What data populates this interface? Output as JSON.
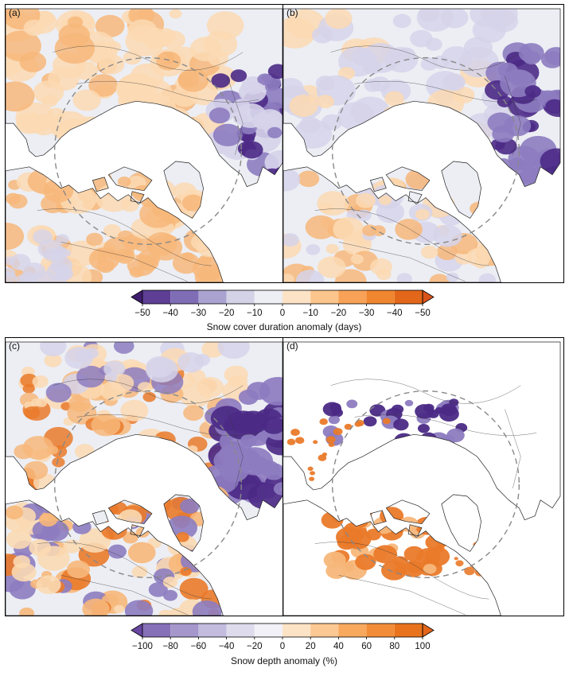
{
  "chart_data": [
    {
      "type": "heatmap",
      "panel_label": "(a)",
      "colorbar": "top",
      "pattern": "diverging map: orange (decrease) across Eurasia margins and western/central North America, purple (increase) over East Asia"
    },
    {
      "type": "heatmap",
      "panel_label": "(b)",
      "colorbar": "top",
      "pattern": "mostly light purple across Eurasia, strong purple over East Asia, orange patches over North America"
    },
    {
      "type": "heatmap",
      "panel_label": "(c)",
      "colorbar": "bottom",
      "pattern": "orange over Siberia and Canada, strong purple over East Asia and Scandinavia"
    },
    {
      "type": "heatmap",
      "panel_label": "(d)",
      "colorbar": "bottom",
      "pattern": "mostly no data; orange patches over Canada, purple band over northern Siberia"
    }
  ],
  "colorbars": {
    "top": {
      "title": "Snow cover duration anomaly (days)",
      "ticks": [
        "−50",
        "−40",
        "−30",
        "−20",
        "−10",
        "0",
        "−10",
        "−20",
        "−30",
        "−40",
        "−50"
      ],
      "colors": [
        "#3f1d6e",
        "#5e3f95",
        "#7f6db6",
        "#aaa3d0",
        "#d4d2e7",
        "#eeeef5",
        "#fde3c6",
        "#fbc58b",
        "#f7a257",
        "#f08630",
        "#e3671a",
        "#d9541a"
      ]
    },
    "bottom": {
      "title": "Snow depth anomaly (%)",
      "ticks": [
        "−100",
        "−80",
        "−60",
        "−40",
        "−20",
        "0",
        "20",
        "40",
        "60",
        "80",
        "100"
      ],
      "colors": [
        "#6847a2",
        "#8670b8",
        "#a597cc",
        "#c3bcde",
        "#dedcec",
        "#f2f1f7",
        "#fde3c6",
        "#fcc893",
        "#f8a95e",
        "#f38c38",
        "#e9731c",
        "#e3661b"
      ]
    }
  },
  "map_colors": {
    "orange_light": "#fbd9b3",
    "orange_mid": "#f7b77a",
    "orange_strong": "#ea7a2a",
    "purple_light": "#d6d3ea",
    "purple_mid": "#8d7cc0",
    "purple_strong": "#4b2a86",
    "land_neutral": "#eceef4"
  }
}
